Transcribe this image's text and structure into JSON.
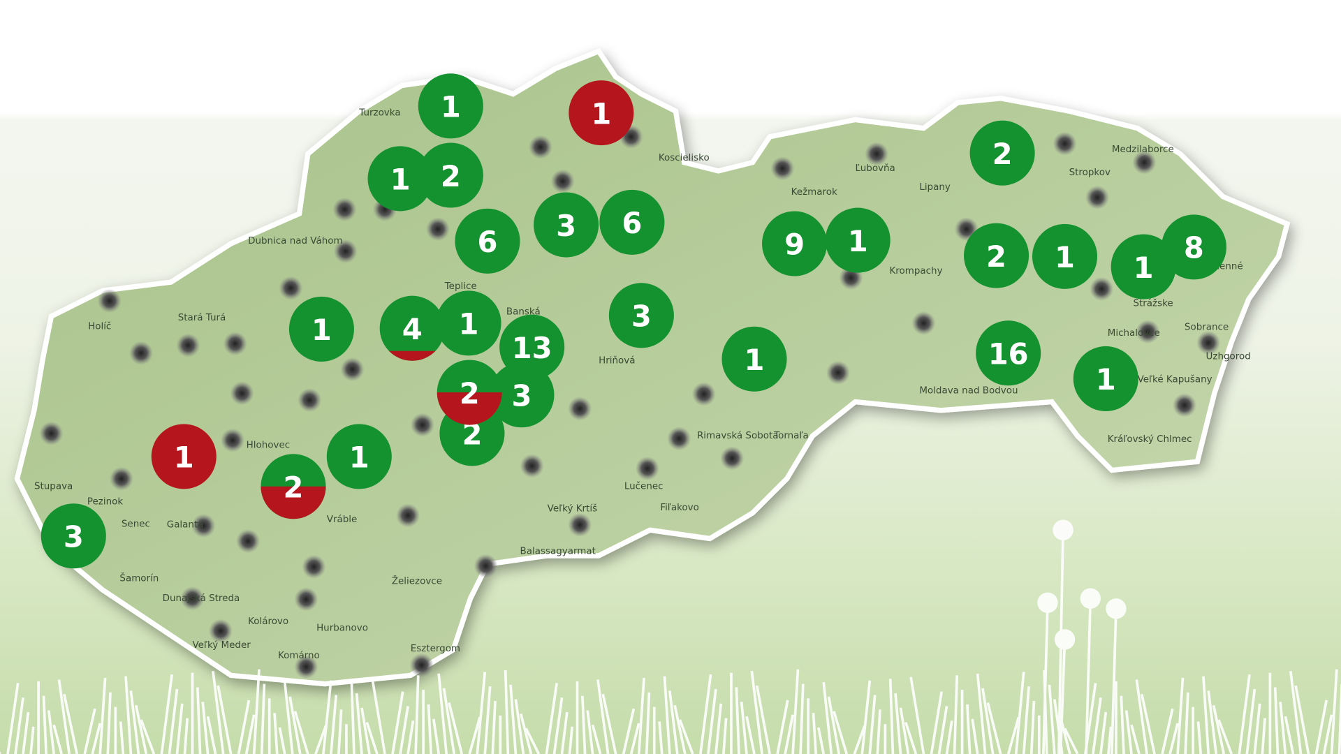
{
  "map": {
    "region": "Slovakia",
    "colors": {
      "green": "#13922f",
      "red": "#b5161e",
      "land": "#b9cf9c",
      "city_dot": "#555555"
    },
    "markers": [
      {
        "count": "1",
        "status": "green"
      },
      {
        "count": "1",
        "status": "red"
      },
      {
        "count": "1",
        "status": "green"
      },
      {
        "count": "2",
        "status": "green"
      },
      {
        "count": "6",
        "status": "green"
      },
      {
        "count": "3",
        "status": "green"
      },
      {
        "count": "6",
        "status": "green"
      },
      {
        "count": "9",
        "status": "green"
      },
      {
        "count": "1",
        "status": "green"
      },
      {
        "count": "2",
        "status": "green"
      },
      {
        "count": "2",
        "status": "green"
      },
      {
        "count": "1",
        "status": "green"
      },
      {
        "count": "1",
        "status": "green"
      },
      {
        "count": "8",
        "status": "green"
      },
      {
        "count": "1",
        "status": "green"
      },
      {
        "count": "4",
        "status": "mixed",
        "red_fraction": 0.15
      },
      {
        "count": "1",
        "status": "green"
      },
      {
        "count": "13",
        "status": "green"
      },
      {
        "count": "3",
        "status": "green"
      },
      {
        "count": "1",
        "status": "green"
      },
      {
        "count": "16",
        "status": "green"
      },
      {
        "count": "1",
        "status": "green"
      },
      {
        "count": "2",
        "status": "mixed",
        "red_fraction": 0.5
      },
      {
        "count": "3",
        "status": "green"
      },
      {
        "count": "2",
        "status": "green"
      },
      {
        "count": "1",
        "status": "red"
      },
      {
        "count": "2",
        "status": "mixed",
        "red_fraction": 0.5
      },
      {
        "count": "1",
        "status": "green"
      },
      {
        "count": "3",
        "status": "green"
      }
    ],
    "place_labels": [
      "Turzovka",
      "Koscielisko",
      "Kežmarok",
      "Ľubovňa",
      "Lipany",
      "Stropkov",
      "Medzilaborce",
      "Dubnica nad Váhom",
      "Krompachy",
      "Teplice",
      "Banská",
      "Stará Turá",
      "Holíč",
      "Humenné",
      "Strážske",
      "Michalovce",
      "Sobrance",
      "Moldava nad Bodvou",
      "Veľké Kapušany",
      "Kráľovský Chlmec",
      "Rimavská Sobota",
      "Tornaľa",
      "Lučenec",
      "Fiľakovo",
      "Veľký Krtíš",
      "Balassagyarmat",
      "Stupava",
      "Pezinok",
      "Senec",
      "Galanta",
      "Šamorín",
      "Dunajská Streda",
      "Kolárovo",
      "Hurbanovo",
      "Veľký Meder",
      "Komárno",
      "Esztergom",
      "Želiezovce",
      "Vráble",
      "Hlohovec",
      "Hriňová",
      "Uzhgorod"
    ]
  }
}
